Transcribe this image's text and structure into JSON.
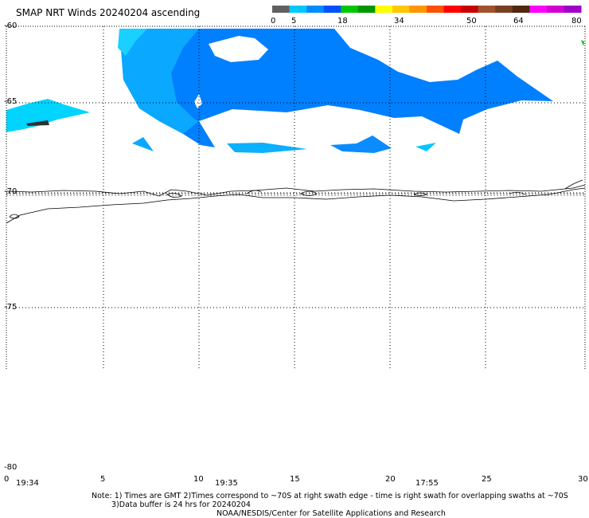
{
  "title": "SMAP NRT Winds 20240204 ascending",
  "colorbar": {
    "tick_labels": [
      "0",
      "5",
      "18",
      "34",
      "50",
      "64",
      "80"
    ],
    "colors": [
      "#606060",
      "#00c8ff",
      "#008cff",
      "#0050ff",
      "#00c800",
      "#009600",
      "#ffff00",
      "#ffc800",
      "#ff9600",
      "#ff5000",
      "#ff0000",
      "#c80000",
      "#a0522d",
      "#784020",
      "#502810",
      "#ff00ff",
      "#d200d2",
      "#a000c8"
    ]
  },
  "lat_labels": [
    "-60",
    "-65",
    "-70",
    "-75",
    "-80"
  ],
  "lon_labels": [
    "0",
    "5",
    "10",
    "15",
    "20",
    "25",
    "30"
  ],
  "time_labels": [
    "19:34",
    "19:35",
    "17:55"
  ],
  "notes": {
    "line1": "Note: 1) Times are GMT 2)Times correspond to ~70S at right swath edge - time is right swath for overlapping swaths at ~70S",
    "line2": "3)Data buffer is 24 hrs for 20240204",
    "line3": "NOAA/NESDIS/Center for Satellite Applications and Research"
  },
  "chart_data": {
    "type": "heatmap",
    "title": "SMAP NRT Winds 20240204 ascending",
    "xlabel": "",
    "ylabel": "",
    "xlim": [
      0,
      30
    ],
    "ylim": [
      -80,
      -60
    ],
    "grid": true,
    "colorbar_ticks": [
      0,
      5,
      18,
      34,
      50,
      64,
      80
    ],
    "wind_regions": [
      {
        "speed_class": "5-18 (light blue)",
        "lon_range": [
          0,
          4.5
        ],
        "lat_range": [
          -66.5,
          -65
        ]
      },
      {
        "speed_class": "5-18 (blue)",
        "lon_range": [
          5.5,
          28.5
        ],
        "lat_range": [
          -68.5,
          -60
        ]
      },
      {
        "speed_class": "0-5 (gray)",
        "lon_range": [
          1,
          2
        ],
        "lat_range": [
          -66.2,
          -65.9
        ]
      }
    ]
  }
}
